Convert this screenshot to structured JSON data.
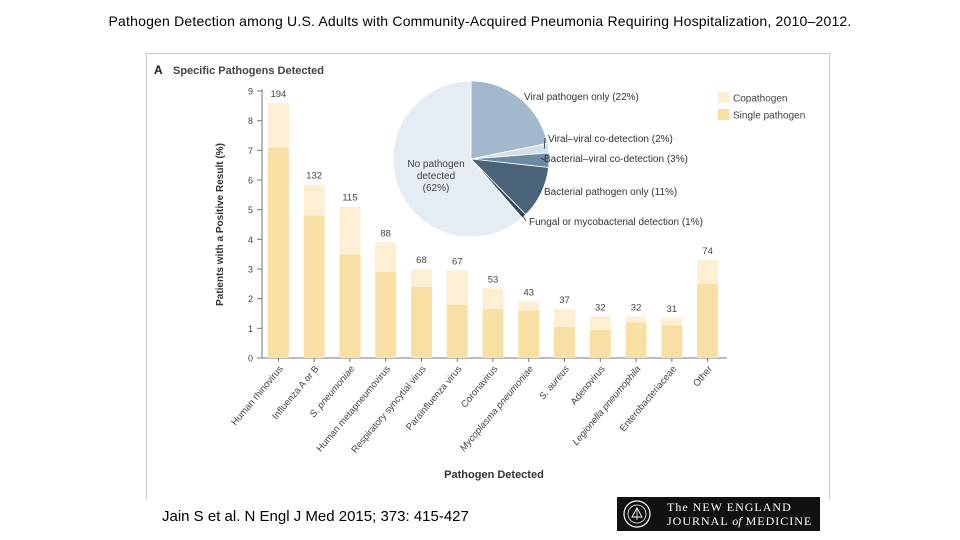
{
  "slide": {
    "title": "Pathogen Detection among U.S. Adults with Community-Acquired Pneumonia Requiring Hospitalization, 2010–2012.",
    "citation": "Jain S et al. N Engl J Med 2015; 373: 415-427"
  },
  "logo": {
    "line1": "The NEW ENGLAND",
    "line2_a": "JOURNAL ",
    "line2_of": "of",
    "line2_b": " MEDICINE"
  },
  "chart_data": [
    {
      "type": "bar",
      "stacked": true,
      "panel_label": "A",
      "title": "Specific Pathogens Detected",
      "xlabel": "Pathogen Detected",
      "ylabel": "Patients with a Positive Result (%)",
      "ylim": [
        0,
        9
      ],
      "yticks": [
        0,
        1,
        2,
        3,
        4,
        5,
        6,
        7,
        8,
        9
      ],
      "categories": [
        "Human rhinovirus",
        "Influenza A or B",
        "S. pneumoniae",
        "Human metapneumovirus",
        "Respiratory syncytial virus",
        "Parainfluenza virus",
        "Coronavirus",
        "Mycoplasma pneumoniae",
        "S. aureus",
        "Adenovirus",
        "Legionella pneumophila",
        "Enterobacteriaceae",
        "Other"
      ],
      "italic_categories": [
        "S. pneumoniae",
        "Mycoplasma pneumoniae",
        "S. aureus",
        "Legionella pneumophila"
      ],
      "counts": [
        "194",
        "132",
        "115",
        "88",
        "68",
        "67",
        "53",
        "43",
        "37",
        "32",
        "32",
        "31",
        "74"
      ],
      "series": [
        {
          "name": "Single pathogen",
          "color": "#f8dfa4",
          "values": [
            7.1,
            4.8,
            3.5,
            2.9,
            2.4,
            1.8,
            1.65,
            1.6,
            1.05,
            0.95,
            1.2,
            1.1,
            2.5
          ]
        },
        {
          "name": "Copathogen",
          "color": "#fcefd3",
          "values": [
            1.5,
            1.05,
            1.6,
            1.0,
            0.6,
            1.15,
            0.7,
            0.3,
            0.6,
            0.45,
            0.2,
            0.25,
            0.8
          ]
        }
      ],
      "legend_position": "top-right"
    },
    {
      "type": "pie",
      "labels": [
        "Viral pathogen only (22%)",
        "Viral–viral co-detection (2%)",
        "Bacterial–viral co-detection (3%)",
        "Bacterial pathogen only (11%)",
        "Fungal or mycobacterial detection (1%)",
        "No pathogen detected (62%)"
      ],
      "center_label": [
        "No pathogen",
        "detected",
        "(62%)"
      ],
      "values": [
        22,
        2,
        3,
        11,
        1,
        62
      ],
      "colors": [
        "#a3b8cc",
        "#d5dfe9",
        "#6c8aa1",
        "#4b6378",
        "#34495c",
        "#e6ecf3"
      ]
    }
  ]
}
